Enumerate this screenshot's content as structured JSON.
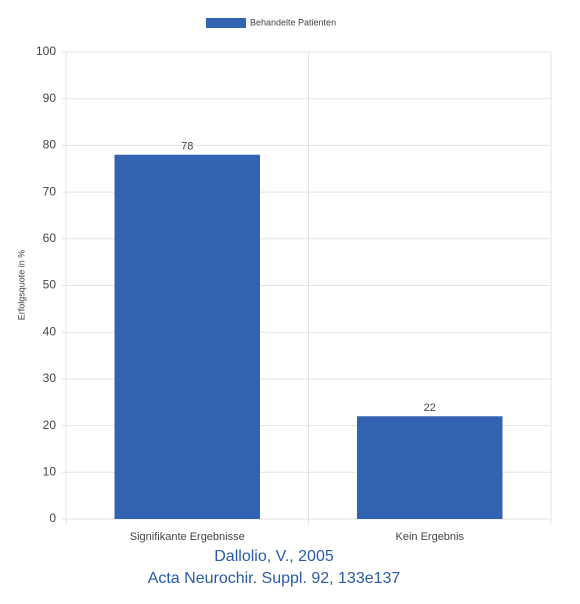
{
  "chart_data": {
    "type": "bar",
    "y_label": "Erfolgsquote in %",
    "categories": [
      "Signifikante Ergebnisse",
      "Kein Ergebnis"
    ],
    "series": [
      {
        "name": "Behandelte Patienten",
        "color": "#3263b3",
        "values": [
          78,
          22
        ]
      }
    ],
    "ylim": [
      0,
      100
    ],
    "yticks": [
      0,
      10,
      20,
      30,
      40,
      50,
      60,
      70,
      80,
      90,
      100
    ],
    "grid": true,
    "legend": "top",
    "source": [
      "Dallolio, V., 2005",
      "Acta Neurochir. Suppl. 92, 133e137"
    ]
  }
}
